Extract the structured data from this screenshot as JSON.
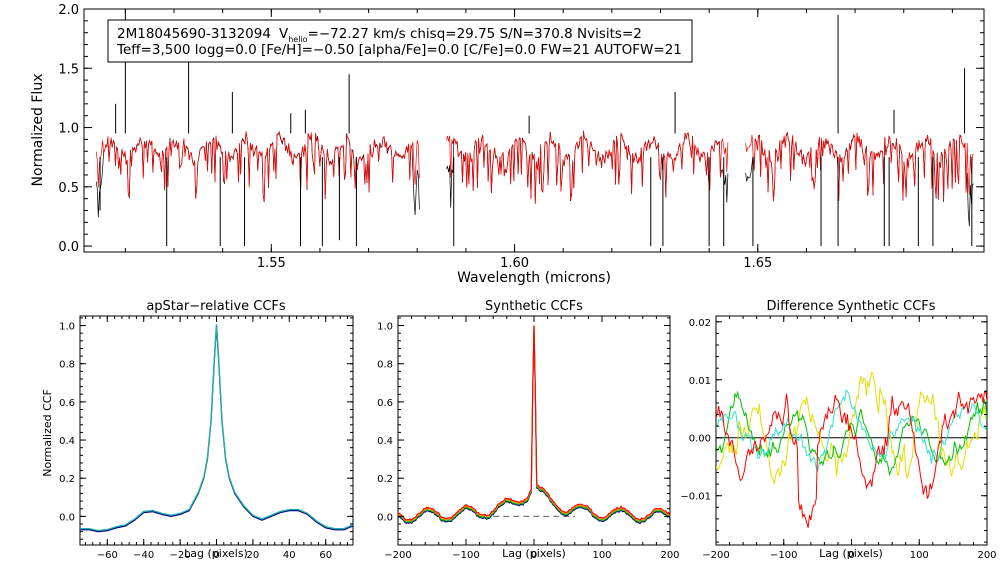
{
  "info_box": {
    "line1_star": "2M18045690-3132094",
    "line1_v": "V",
    "line1_v_sub": "helio",
    "line1_rest": "=−72.27 km/s  chisq=29.75  S/N=370.8  Nvisits=2",
    "line2": "Teff=3,500 logg=0.0 [Fe/H]=−0.50 [alpha/Fe]=0.0 [C/Fe]=0.0 FW=21 AUTOFW=21"
  },
  "colors": {
    "observed": "#000000",
    "model": "#ff0000",
    "ccf_main": "#000080",
    "ccf_overlay": "#20b2aa",
    "syn_orange": "#ff8c00",
    "syn_green": "#00c000",
    "syn_yellow": "#e0e000",
    "syn_cyan": "#30e0d0",
    "syn_red": "#ff0000",
    "dashed": "#808080"
  },
  "chart_data": [
    {
      "id": "spectrum",
      "type": "line",
      "title": "",
      "xlabel": "Wavelength (microns)",
      "ylabel": "Normalized Flux",
      "xlim": [
        1.5115,
        1.6965
      ],
      "ylim": [
        -0.05,
        2.0
      ],
      "xticks": [
        1.55,
        1.6,
        1.65
      ],
      "xtick_labels": [
        "1.55",
        "1.60",
        "1.65"
      ],
      "yticks": [
        0.0,
        0.5,
        1.0,
        1.5,
        2.0
      ],
      "ytick_labels": [
        "0.0",
        "0.5",
        "1.0",
        "1.5",
        "2.0"
      ],
      "chips": [
        [
          1.514,
          1.5805
        ],
        [
          1.586,
          1.644
        ],
        [
          1.6475,
          1.6945
        ]
      ],
      "series": [
        {
          "name": "observed",
          "baseline": 0.9
        },
        {
          "name": "model",
          "baseline": 0.88
        }
      ],
      "spikes": [
        {
          "x": 1.52,
          "y": 2.0
        },
        {
          "x": 1.533,
          "y": 1.55
        },
        {
          "x": 1.518,
          "y": 1.2
        },
        {
          "x": 1.542,
          "y": 1.3
        },
        {
          "x": 1.557,
          "y": 1.15
        },
        {
          "x": 1.566,
          "y": 1.45
        },
        {
          "x": 1.633,
          "y": 1.3
        },
        {
          "x": 1.6665,
          "y": 1.95
        },
        {
          "x": 1.678,
          "y": 1.15
        },
        {
          "x": 1.6925,
          "y": 1.5
        },
        {
          "x": 1.603,
          "y": 1.1
        },
        {
          "x": 1.554,
          "y": 1.12
        }
      ],
      "dips": [
        {
          "x": 1.5148,
          "y": 0.3
        },
        {
          "x": 1.5285,
          "y": 0.0
        },
        {
          "x": 1.5395,
          "y": 0.0
        },
        {
          "x": 1.5445,
          "y": 0.0
        },
        {
          "x": 1.556,
          "y": 0.0
        },
        {
          "x": 1.5605,
          "y": 0.0
        },
        {
          "x": 1.564,
          "y": 0.05
        },
        {
          "x": 1.5675,
          "y": 0.0
        },
        {
          "x": 1.5875,
          "y": 0.0
        },
        {
          "x": 1.628,
          "y": 0.0
        },
        {
          "x": 1.6305,
          "y": 0.0
        },
        {
          "x": 1.64,
          "y": 0.0
        },
        {
          "x": 1.643,
          "y": 0.0
        },
        {
          "x": 1.649,
          "y": 0.0
        },
        {
          "x": 1.663,
          "y": 0.0
        },
        {
          "x": 1.6665,
          "y": 0.0
        },
        {
          "x": 1.676,
          "y": 0.0
        },
        {
          "x": 1.677,
          "y": 0.0
        },
        {
          "x": 1.683,
          "y": 0.0
        },
        {
          "x": 1.686,
          "y": 0.0
        },
        {
          "x": 1.694,
          "y": 0.0
        }
      ]
    },
    {
      "id": "ccf1",
      "type": "line",
      "title": "apStar−relative CCFs",
      "xlabel": "Lag (pixels)",
      "ylabel": "Normalized CCF",
      "xlim": [
        -75,
        75
      ],
      "ylim": [
        -0.15,
        1.05
      ],
      "xticks": [
        -60,
        -40,
        -20,
        0,
        20,
        40,
        60
      ],
      "xtick_labels": [
        "−60",
        "−40",
        "−20",
        "0",
        "20",
        "40",
        "60"
      ],
      "yticks": [
        0.0,
        0.2,
        0.4,
        0.6,
        0.8,
        1.0
      ],
      "ytick_labels": [
        "0.0",
        "0.2",
        "0.4",
        "0.6",
        "0.8",
        "1.0"
      ],
      "profile_points": [
        [
          -75,
          -0.07
        ],
        [
          -70,
          -0.07
        ],
        [
          -65,
          -0.08
        ],
        [
          -60,
          -0.075
        ],
        [
          -55,
          -0.06
        ],
        [
          -50,
          -0.05
        ],
        [
          -45,
          -0.02
        ],
        [
          -40,
          0.02
        ],
        [
          -35,
          0.025
        ],
        [
          -30,
          0.01
        ],
        [
          -25,
          0.0
        ],
        [
          -20,
          0.01
        ],
        [
          -15,
          0.03
        ],
        [
          -10,
          0.12
        ],
        [
          -7,
          0.2
        ],
        [
          -5,
          0.3
        ],
        [
          -3,
          0.5
        ],
        [
          -1,
          0.85
        ],
        [
          0,
          1.0
        ],
        [
          1,
          0.85
        ],
        [
          3,
          0.5
        ],
        [
          5,
          0.3
        ],
        [
          7,
          0.2
        ],
        [
          10,
          0.12
        ],
        [
          15,
          0.05
        ],
        [
          20,
          0.0
        ],
        [
          25,
          -0.02
        ],
        [
          30,
          0.0
        ],
        [
          35,
          0.02
        ],
        [
          40,
          0.03
        ],
        [
          45,
          0.03
        ],
        [
          50,
          0.01
        ],
        [
          55,
          -0.03
        ],
        [
          60,
          -0.06
        ],
        [
          65,
          -0.07
        ],
        [
          70,
          -0.07
        ],
        [
          75,
          -0.05
        ]
      ]
    },
    {
      "id": "ccf2",
      "type": "line",
      "title": "Synthetic CCFs",
      "xlabel": "Lag (pixels)",
      "ylabel": "",
      "xlim": [
        -200,
        200
      ],
      "ylim": [
        -0.15,
        1.05
      ],
      "xticks": [
        -200,
        -100,
        0,
        100,
        200
      ],
      "xtick_labels": [
        "−200",
        "−100",
        "0",
        "100",
        "200"
      ],
      "yticks": [
        0.0,
        0.2,
        0.4,
        0.6,
        0.8,
        1.0
      ],
      "ytick_labels": [
        "0.0",
        "0.2",
        "0.4",
        "0.6",
        "0.8",
        "1.0"
      ],
      "dashed_range": [
        -60,
        60
      ],
      "dashed_y": 0.0
    },
    {
      "id": "ccf3",
      "type": "line",
      "title": "Difference Synthetic CCFs",
      "xlabel": "Lag (pixels)",
      "ylabel": "",
      "xlim": [
        -200,
        200
      ],
      "ylim": [
        -0.0185,
        0.021
      ],
      "xticks": [
        -200,
        -100,
        0,
        100,
        200
      ],
      "xtick_labels": [
        "−200",
        "−100",
        "0",
        "100",
        "200"
      ],
      "yticks": [
        -0.01,
        0.0,
        0.01,
        0.02
      ],
      "ytick_labels": [
        "−0.01",
        "0.00",
        "0.01",
        "0.02"
      ],
      "zero_line": 0.0
    }
  ]
}
